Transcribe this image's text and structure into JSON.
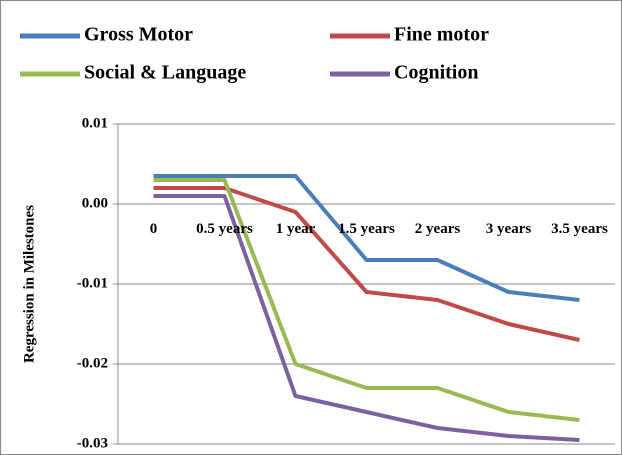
{
  "chart_data": {
    "type": "line",
    "y_axis_label": "Regression in Milestones",
    "categories": [
      "0",
      "0.5 years",
      "1 year",
      "1.5 years",
      "2 years",
      "3 years",
      "3.5 years"
    ],
    "series": [
      {
        "name": "Gross Motor",
        "color": "#4a7ebb",
        "values": [
          0.0035,
          0.0035,
          0.0035,
          -0.007,
          -0.007,
          -0.011,
          -0.012
        ]
      },
      {
        "name": "Fine motor",
        "color": "#be4b48",
        "values": [
          0.002,
          0.002,
          -0.001,
          -0.011,
          -0.012,
          -0.015,
          -0.017
        ]
      },
      {
        "name": "Social & Language",
        "color": "#98b954",
        "values": [
          0.003,
          0.003,
          -0.02,
          -0.023,
          -0.023,
          -0.026,
          -0.027
        ]
      },
      {
        "name": "Cognition",
        "color": "#7d60a0",
        "values": [
          0.001,
          0.001,
          -0.024,
          -0.026,
          -0.028,
          -0.029,
          -0.0295
        ]
      }
    ],
    "ylim": [
      -0.03,
      0.01
    ],
    "yticks": [
      0.01,
      {
        "value": 0,
        "label": "0.00"
      },
      -0.01,
      -0.02,
      -0.03
    ],
    "grid": true,
    "legend": "top"
  }
}
